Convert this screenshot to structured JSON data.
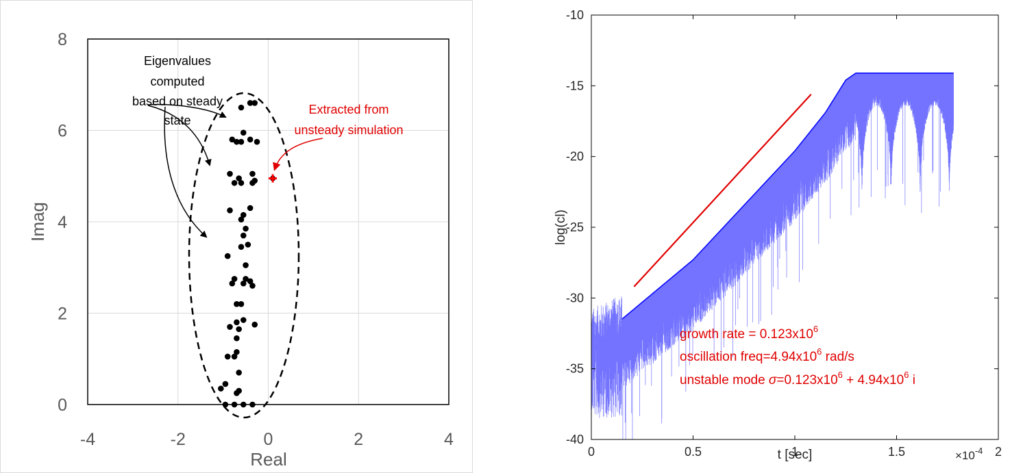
{
  "chart_data": [
    {
      "type": "scatter",
      "xlabel": "Real",
      "ylabel": "Imag",
      "xlim": [
        -4,
        4
      ],
      "ylim": [
        0,
        8
      ],
      "x_ticks": [
        "-4",
        "-2",
        "0",
        "2",
        "4"
      ],
      "y_ticks": [
        "0",
        "2",
        "4",
        "6",
        "8"
      ],
      "grid": true,
      "annotations": {
        "steady": [
          "Eigenvalues",
          "computed",
          "based on steady",
          "state"
        ],
        "unsteady": [
          "Extracted from",
          "unsteady simulation"
        ]
      },
      "colors": {
        "steady": "#000000",
        "unsteady": "#ff0000"
      },
      "series": [
        {
          "marker": "circle",
          "points": [
            [
              -0.4,
              6.6
            ],
            [
              -0.3,
              6.6
            ],
            [
              -0.6,
              6.5
            ],
            [
              -0.55,
              5.95
            ],
            [
              -0.8,
              5.8
            ],
            [
              -0.4,
              5.8
            ],
            [
              -0.25,
              5.75
            ],
            [
              -0.7,
              5.75
            ],
            [
              -0.6,
              5.75
            ],
            [
              -0.85,
              5.05
            ],
            [
              -0.35,
              5.05
            ],
            [
              -0.65,
              4.95
            ],
            [
              -0.3,
              4.9
            ],
            [
              -0.75,
              4.85
            ],
            [
              -0.6,
              4.85
            ],
            [
              -0.35,
              4.85
            ],
            [
              -0.85,
              4.25
            ],
            [
              -0.4,
              4.3
            ],
            [
              -0.55,
              4.15
            ],
            [
              -0.6,
              4.05
            ],
            [
              -0.5,
              3.85
            ],
            [
              -0.55,
              3.7
            ],
            [
              -0.45,
              3.5
            ],
            [
              -0.6,
              3.45
            ],
            [
              -0.9,
              3.25
            ],
            [
              -0.5,
              3.05
            ],
            [
              -0.75,
              2.75
            ],
            [
              -0.5,
              2.75
            ],
            [
              -0.4,
              2.7
            ],
            [
              -0.8,
              2.65
            ],
            [
              -0.55,
              2.65
            ],
            [
              -0.35,
              2.6
            ],
            [
              -0.7,
              2.2
            ],
            [
              -0.6,
              2.2
            ],
            [
              -0.55,
              1.85
            ],
            [
              -0.7,
              1.8
            ],
            [
              -0.3,
              1.75
            ],
            [
              -0.85,
              1.7
            ],
            [
              -0.65,
              1.65
            ],
            [
              -0.7,
              1.45
            ],
            [
              -0.7,
              1.15
            ],
            [
              -0.75,
              1.05
            ],
            [
              -0.9,
              1.05
            ],
            [
              -0.65,
              0.7
            ],
            [
              -0.95,
              0.45
            ],
            [
              -1.05,
              0.35
            ],
            [
              -0.65,
              0.3
            ],
            [
              -0.7,
              0.25
            ],
            [
              -0.95,
              0.0
            ],
            [
              -0.75,
              0.0
            ],
            [
              -0.55,
              0.0
            ],
            [
              -0.35,
              0.0
            ]
          ]
        },
        {
          "marker": "plus",
          "points": [
            [
              0.1,
              4.95
            ]
          ]
        }
      ]
    },
    {
      "type": "line",
      "xlabel": "t [sec]",
      "ylabel": "log(cl)",
      "xlim": [
        0,
        0.0002
      ],
      "ylim": [
        -40,
        -10
      ],
      "x_ticks": [
        "0",
        "0.5",
        "1",
        "1.5",
        "2"
      ],
      "x_exponent": "×10",
      "x_exponent_power": "-4",
      "y_ticks": [
        "-10",
        "-15",
        "-20",
        "-25",
        "-30",
        "-35",
        "-40"
      ],
      "grid": false,
      "colors": {
        "signal": "#0000ff",
        "fit": "#e00000",
        "annotation": "#e00000"
      },
      "growth_line": {
        "x": [
          2.1e-05,
          0.000108
        ],
        "y": [
          -29.2,
          -15.6
        ]
      },
      "envelope": {
        "upper": [
          [
            0.0,
            -32.5
          ],
          [
            1.5e-05,
            -31.5
          ],
          [
            5e-05,
            -27.3
          ],
          [
            0.0001,
            -19.6
          ],
          [
            0.000115,
            -16.9
          ],
          [
            0.000125,
            -14.6
          ],
          [
            0.00013,
            -14.1
          ],
          [
            0.000178,
            -14.1
          ]
        ],
        "lower_noise_until": 1.5e-05,
        "ramp_gap": 2.5
      },
      "annotations": [
        {
          "text": "growth rate = 0.123x10",
          "sup": "6",
          "rest": ""
        },
        {
          "text": "oscillation freq=4.94x10",
          "sup": "6",
          "rest": " rad/s"
        },
        {
          "text": "unstable mode ",
          "sigma": "σ",
          "text2": "=0.123x10",
          "sup": "6",
          "rest": " + 4.94x10",
          "sup2": "6",
          "rest2": " i"
        }
      ]
    }
  ]
}
